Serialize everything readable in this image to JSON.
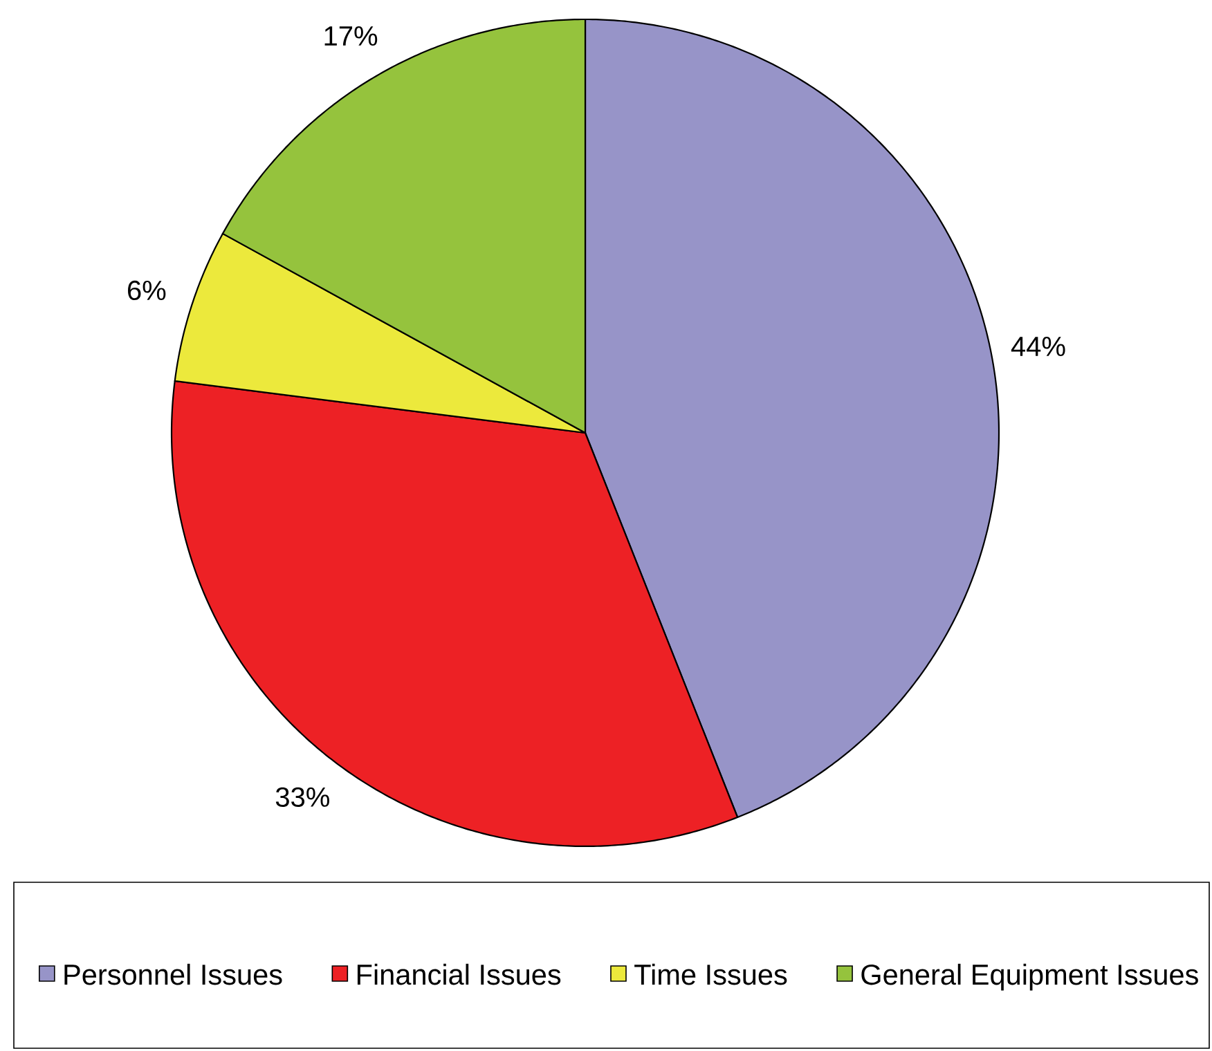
{
  "chart_data": {
    "type": "pie",
    "categories": [
      "Personnel Issues",
      "Financial Issues",
      "Time Issues",
      "General Equipment Issues"
    ],
    "values": [
      44,
      33,
      6,
      17
    ],
    "value_labels": [
      "44%",
      "33%",
      "6%",
      "17%"
    ],
    "colors": [
      "#9794c8",
      "#ed2125",
      "#ece93c",
      "#95c33d"
    ],
    "legend": "bottom"
  }
}
